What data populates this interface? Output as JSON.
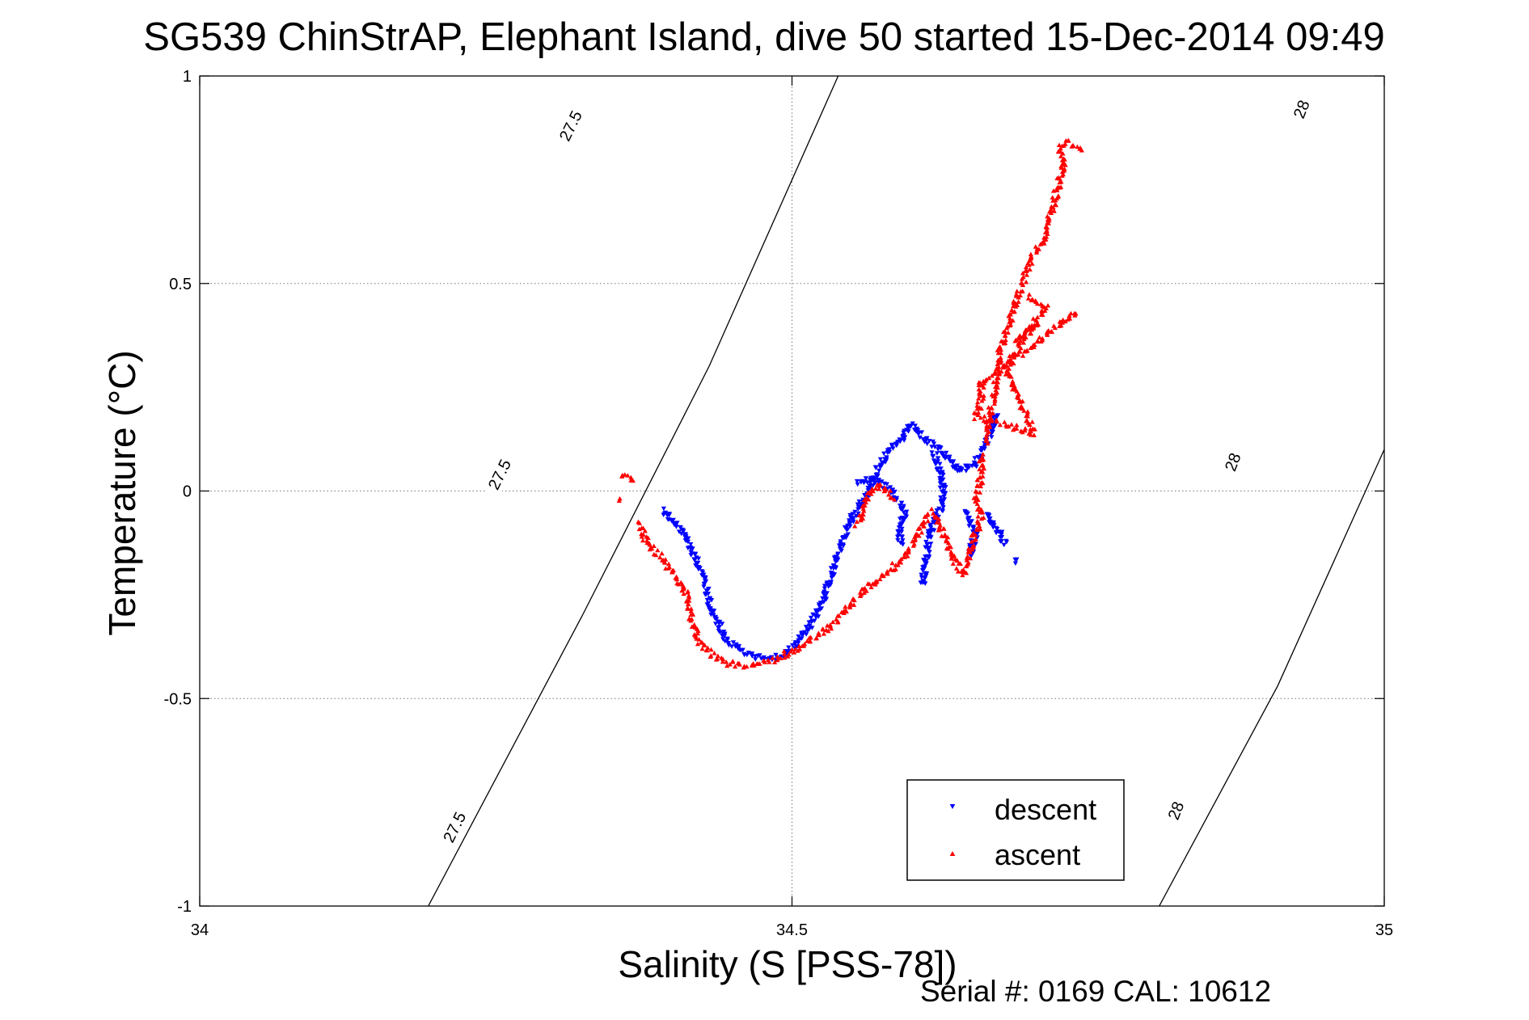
{
  "chart_data": {
    "type": "scatter",
    "title": "SG539 ChinStrAP, Elephant Island, dive 50 started 15-Dec-2014 09:49",
    "xlabel": "Salinity (S [PSS-78])",
    "ylabel": "Temperature (°C)",
    "xlim": [
      34,
      35
    ],
    "ylim": [
      -1,
      1
    ],
    "x_ticks": [
      34,
      34.5,
      35
    ],
    "x_tick_labels": [
      "34",
      "34.5",
      "35"
    ],
    "y_ticks": [
      1,
      0.5,
      0,
      -0.5,
      -1
    ],
    "y_tick_labels": [
      "1",
      "0.5",
      "0",
      "-0.5",
      "-1"
    ],
    "grid": true,
    "legend": {
      "location": "lower-right",
      "entries": [
        "descent",
        "ascent"
      ]
    },
    "footer": "Serial #: 0169 CAL: 10612",
    "isopycnals": [
      {
        "label": "27.5",
        "points": [
          [
            34.193,
            -1.0
          ],
          [
            34.323,
            -0.3
          ],
          [
            34.43,
            0.3
          ],
          [
            34.539,
            1.0
          ]
        ],
        "label_positions": [
          [
            34.215,
            -0.81
          ],
          [
            34.253,
            0.04
          ],
          [
            34.313,
            0.88
          ]
        ]
      },
      {
        "label": "28",
        "points": [
          [
            34.81,
            -1.0
          ],
          [
            34.91,
            -0.47
          ],
          [
            35.0,
            0.1
          ],
          [
            35.083,
            1.0
          ]
        ],
        "label_positions": [
          [
            34.824,
            -0.77
          ],
          [
            34.872,
            0.07
          ],
          [
            34.93,
            0.92
          ]
        ]
      }
    ],
    "series": [
      {
        "name": "descent",
        "color": "#0000ff",
        "marker": "triangle-down",
        "paths": [
          [
            [
              34.391,
              -0.045
            ],
            [
              34.41,
              -0.11
            ],
            [
              34.425,
              -0.2
            ],
            [
              34.432,
              -0.29
            ],
            [
              34.445,
              -0.36
            ],
            [
              34.463,
              -0.395
            ],
            [
              34.485,
              -0.405
            ],
            [
              34.5,
              -0.38
            ],
            [
              34.515,
              -0.33
            ],
            [
              34.525,
              -0.27
            ],
            [
              34.535,
              -0.19
            ],
            [
              34.545,
              -0.1
            ],
            [
              34.555,
              -0.04
            ],
            [
              34.565,
              0.0
            ],
            [
              34.572,
              0.05
            ],
            [
              34.58,
              0.09
            ],
            [
              34.595,
              0.13
            ],
            [
              34.6,
              0.16
            ],
            [
              34.61,
              0.13
            ],
            [
              34.625,
              0.1
            ],
            [
              34.64,
              0.05
            ],
            [
              34.655,
              0.06
            ],
            [
              34.66,
              0.1
            ],
            [
              34.67,
              0.15
            ],
            [
              34.672,
              0.19
            ]
          ],
          [
            [
              34.555,
              0.02
            ],
            [
              34.57,
              0.03
            ],
            [
              34.585,
              0.0
            ],
            [
              34.595,
              -0.05
            ],
            [
              34.59,
              -0.1
            ],
            [
              34.592,
              -0.13
            ]
          ],
          [
            [
              34.62,
              0.09
            ],
            [
              34.625,
              0.05
            ],
            [
              34.628,
              0.0
            ],
            [
              34.625,
              -0.05
            ],
            [
              34.618,
              -0.09
            ],
            [
              34.614,
              -0.14
            ],
            [
              34.612,
              -0.19
            ],
            [
              34.61,
              -0.23
            ]
          ],
          [
            [
              34.645,
              -0.05
            ],
            [
              34.655,
              -0.1
            ],
            [
              34.65,
              -0.16
            ]
          ],
          [
            [
              34.663,
              -0.05
            ],
            [
              34.672,
              -0.09
            ],
            [
              34.68,
              -0.13
            ]
          ],
          [
            [
              34.69,
              -0.17
            ]
          ]
        ],
        "count": 760
      },
      {
        "name": "ascent",
        "color": "#ff0000",
        "marker": "triangle-up",
        "paths": [
          [
            [
              34.357,
              0.04
            ],
            [
              34.362,
              0.03
            ],
            [
              34.368,
              0.03
            ]
          ],
          [
            [
              34.355,
              -0.02
            ]
          ],
          [
            [
              34.372,
              -0.08
            ],
            [
              34.378,
              -0.13
            ],
            [
              34.39,
              -0.16
            ],
            [
              34.4,
              -0.2
            ],
            [
              34.41,
              -0.24
            ],
            [
              34.415,
              -0.3
            ],
            [
              34.42,
              -0.36
            ],
            [
              34.435,
              -0.4
            ],
            [
              34.452,
              -0.42
            ],
            [
              34.47,
              -0.42
            ],
            [
              34.49,
              -0.4
            ],
            [
              34.51,
              -0.37
            ],
            [
              34.53,
              -0.33
            ],
            [
              34.545,
              -0.29
            ],
            [
              34.56,
              -0.24
            ],
            [
              34.58,
              -0.2
            ],
            [
              34.6,
              -0.14
            ],
            [
              34.608,
              -0.1
            ],
            [
              34.615,
              -0.05
            ]
          ],
          [
            [
              34.555,
              -0.08
            ],
            [
              34.565,
              -0.01
            ],
            [
              34.575,
              0.02
            ],
            [
              34.585,
              -0.02
            ]
          ],
          [
            [
              34.62,
              -0.05
            ],
            [
              34.632,
              -0.13
            ],
            [
              34.638,
              -0.17
            ],
            [
              34.645,
              -0.2
            ],
            [
              34.65,
              -0.15
            ],
            [
              34.655,
              -0.1
            ],
            [
              34.66,
              -0.06
            ],
            [
              34.655,
              -0.02
            ],
            [
              34.66,
              0.04
            ],
            [
              34.66,
              0.09
            ]
          ],
          [
            [
              34.665,
              0.12
            ],
            [
              34.668,
              0.2
            ],
            [
              34.672,
              0.26
            ],
            [
              34.675,
              0.33
            ],
            [
              34.68,
              0.38
            ],
            [
              34.685,
              0.42
            ],
            [
              34.69,
              0.47
            ],
            [
              34.697,
              0.52
            ],
            [
              34.7,
              0.55
            ],
            [
              34.705,
              0.58
            ],
            [
              34.712,
              0.6
            ],
            [
              34.715,
              0.63
            ],
            [
              34.72,
              0.68
            ],
            [
              34.723,
              0.72
            ],
            [
              34.727,
              0.76
            ],
            [
              34.73,
              0.8
            ],
            [
              34.725,
              0.83
            ],
            [
              34.732,
              0.84
            ],
            [
              34.742,
              0.83
            ],
            [
              34.745,
              0.82
            ]
          ],
          [
            [
              34.7,
              0.47
            ],
            [
              34.715,
              0.44
            ],
            [
              34.703,
              0.4
            ],
            [
              34.69,
              0.36
            ],
            [
              34.71,
              0.41
            ]
          ],
          [
            [
              34.74,
              0.43
            ],
            [
              34.66,
              0.26
            ],
            [
              34.66,
              0.22
            ],
            [
              34.655,
              0.18
            ],
            [
              34.705,
              0.14
            ],
            [
              34.68,
              0.3
            ],
            [
              34.695,
              0.36
            ]
          ]
        ],
        "count": 880
      }
    ]
  }
}
